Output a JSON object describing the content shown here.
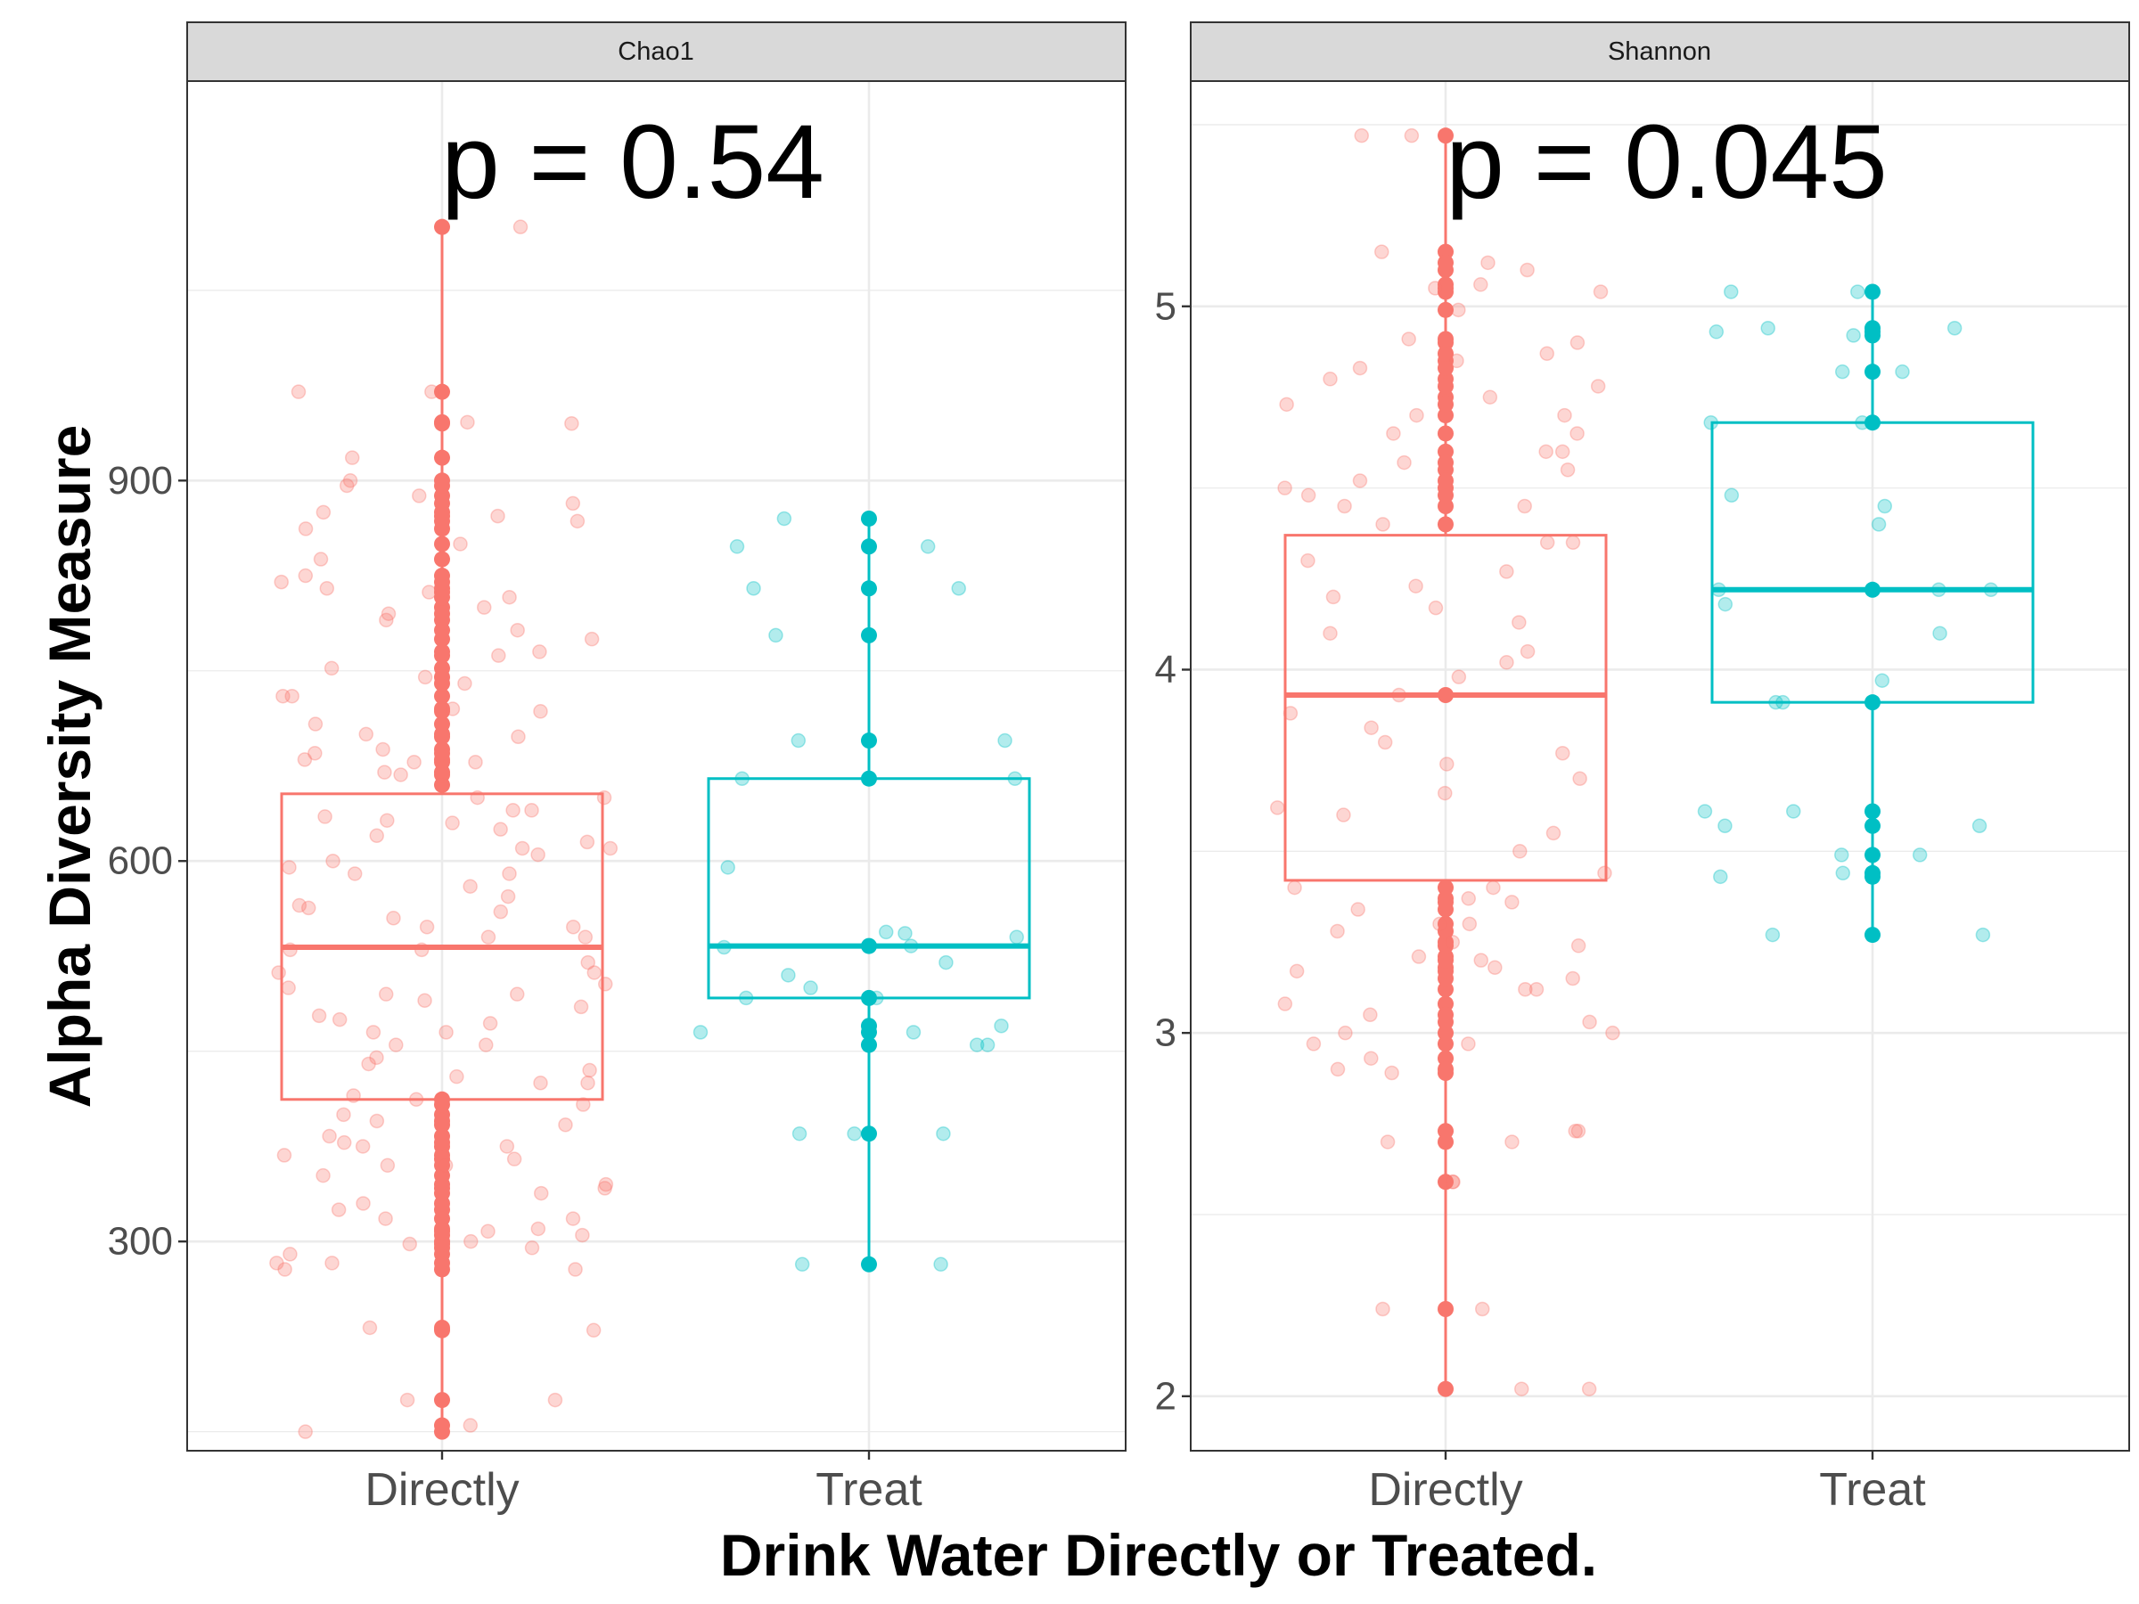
{
  "figure": {
    "xlabel": "Drink Water Directly or Treated.",
    "ylabel": "Alpha Diversity Measure",
    "colors": {
      "Directly": "#F8766D",
      "Treat": "#00BFC4"
    }
  },
  "chart_data": [
    {
      "type": "box",
      "panel": "Chao1",
      "annotation": "p = 0.54",
      "categories": [
        "Directly",
        "Treat"
      ],
      "ylim": [
        135,
        1215
      ],
      "yticks": [
        300,
        600,
        900
      ],
      "grid": true,
      "series": [
        {
          "category": "Directly",
          "box": {
            "whisker_low": 150,
            "q1": 412,
            "median": 532,
            "q3": 653,
            "whisker_high": 1100
          },
          "points": [
            150,
            175,
            230,
            278,
            283,
            290,
            295,
            300,
            305,
            310,
            318,
            325,
            330,
            338,
            345,
            352,
            360,
            368,
            375,
            383,
            392,
            400,
            408,
            415,
            425,
            435,
            445,
            455,
            465,
            475,
            485,
            495,
            503,
            512,
            520,
            530,
            540,
            548,
            555,
            563,
            572,
            580,
            590,
            600,
            610,
            620,
            630,
            640,
            650,
            660,
            668,
            678,
            688,
            698,
            708,
            720,
            730,
            740,
            752,
            762,
            775,
            790,
            800,
            812,
            825,
            838,
            850,
            862,
            875,
            888,
            900,
            918,
            946,
            970,
            1100,
            155,
            175,
            232,
            278,
            283,
            298,
            308,
            318,
            342,
            360,
            365,
            375,
            378,
            395,
            412,
            425,
            430,
            440,
            455,
            465,
            472,
            478,
            490,
            495,
            500,
            512,
            530,
            540,
            548,
            560,
            565,
            590,
            595,
            605,
            610,
            615,
            625,
            632,
            635,
            640,
            650,
            670,
            678,
            680,
            685,
            700,
            718,
            730,
            745,
            765,
            782,
            795,
            808,
            815,
            820,
            868,
            872,
            882,
            896,
            945,
            970
          ]
        },
        {
          "category": "Treat",
          "box": {
            "whisker_low": 282,
            "q1": 492,
            "median": 533,
            "q3": 665,
            "whisker_high": 870
          },
          "points": [
            282,
            385,
            455,
            465,
            470,
            492,
            533,
            665,
            695,
            778,
            815,
            848,
            870,
            282,
            385,
            385,
            455,
            465,
            492,
            500,
            510,
            520,
            532,
            540,
            543,
            544,
            595,
            665,
            695,
            815,
            848,
            870
          ]
        }
      ]
    },
    {
      "type": "box",
      "panel": "Shannon",
      "annotation": "p = 0.045",
      "categories": [
        "Directly",
        "Treat"
      ],
      "ylim": [
        1.85,
        5.62
      ],
      "yticks": [
        2,
        3,
        4,
        5
      ],
      "grid": true,
      "series": [
        {
          "category": "Directly",
          "box": {
            "whisker_low": 2.02,
            "q1": 3.42,
            "median": 3.93,
            "q3": 4.37,
            "whisker_high": 5.47
          },
          "points": [
            2.02,
            2.24,
            2.59,
            2.7,
            2.73,
            2.89,
            2.93,
            2.97,
            3.0,
            3.03,
            3.08,
            3.12,
            3.15,
            3.18,
            3.21,
            3.25,
            3.3,
            3.34,
            3.37,
            3.4,
            4.35,
            4.4,
            4.45,
            4.5,
            4.55,
            4.6,
            4.65,
            4.7,
            4.75,
            4.8,
            4.85,
            4.9,
            5.05,
            5.1,
            5.15,
            5.47,
            2.02,
            2.24,
            2.59,
            2.7,
            2.73,
            2.9,
            2.97,
            3.0,
            3.05,
            3.12,
            3.17,
            3.2,
            3.24,
            3.28,
            3.3,
            3.36,
            3.4,
            3.44,
            3.5,
            3.55,
            3.6,
            3.62,
            3.66,
            3.7,
            3.74,
            3.77,
            3.8,
            3.84,
            3.88,
            3.93,
            3.98,
            4.02,
            4.05,
            4.1,
            4.13,
            4.17,
            4.2,
            4.23,
            4.27,
            4.3,
            4.35,
            4.45,
            4.48,
            4.52,
            4.57,
            4.6,
            4.65,
            4.7,
            4.73,
            4.78,
            4.83,
            4.87,
            4.91,
            4.99,
            5.04,
            5.06,
            5.12,
            5.47
          ]
        },
        {
          "category": "Treat",
          "box": {
            "whisker_low": 3.27,
            "q1": 3.91,
            "median": 4.22,
            "q3": 4.68,
            "whisker_high": 5.04
          },
          "points": [
            3.27,
            3.43,
            3.49,
            3.57,
            3.61,
            3.91,
            4.22,
            4.68,
            4.82,
            4.92,
            4.94,
            5.04,
            3.27,
            3.44,
            3.49,
            3.57,
            3.61,
            3.91,
            3.97,
            4.1,
            4.18,
            4.22,
            4.22,
            4.4,
            4.45,
            4.48,
            4.68,
            4.82,
            4.93,
            4.94,
            5.04
          ]
        }
      ]
    }
  ]
}
